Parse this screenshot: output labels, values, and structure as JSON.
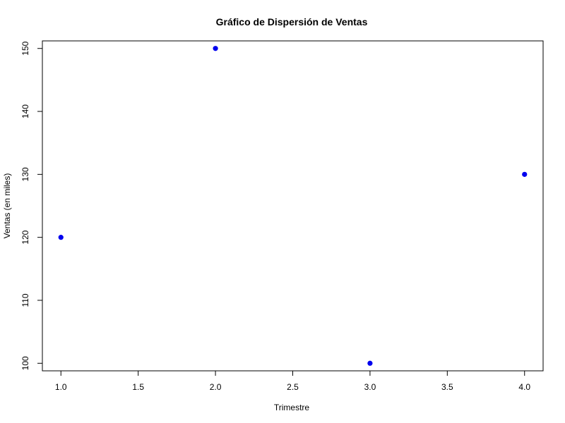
{
  "chart_data": {
    "type": "scatter",
    "title": "Gráfico de Dispersión de Ventas",
    "xlabel": "Trimestre",
    "ylabel": "Ventas (en miles)",
    "x": [
      1,
      2,
      3,
      4
    ],
    "y": [
      120,
      150,
      100,
      130
    ],
    "xlim": [
      0.88,
      4.12
    ],
    "ylim": [
      98.8,
      151.2
    ],
    "x_ticks": [
      1.0,
      1.5,
      2.0,
      2.5,
      3.0,
      3.5,
      4.0
    ],
    "x_tick_labels": [
      "1.0",
      "1.5",
      "2.0",
      "2.5",
      "3.0",
      "3.5",
      "4.0"
    ],
    "y_ticks": [
      100,
      110,
      120,
      130,
      140,
      150
    ],
    "y_tick_labels": [
      "100",
      "110",
      "120",
      "130",
      "140",
      "150"
    ],
    "point_color": "#0000ee",
    "grid": false,
    "legend": "none"
  }
}
